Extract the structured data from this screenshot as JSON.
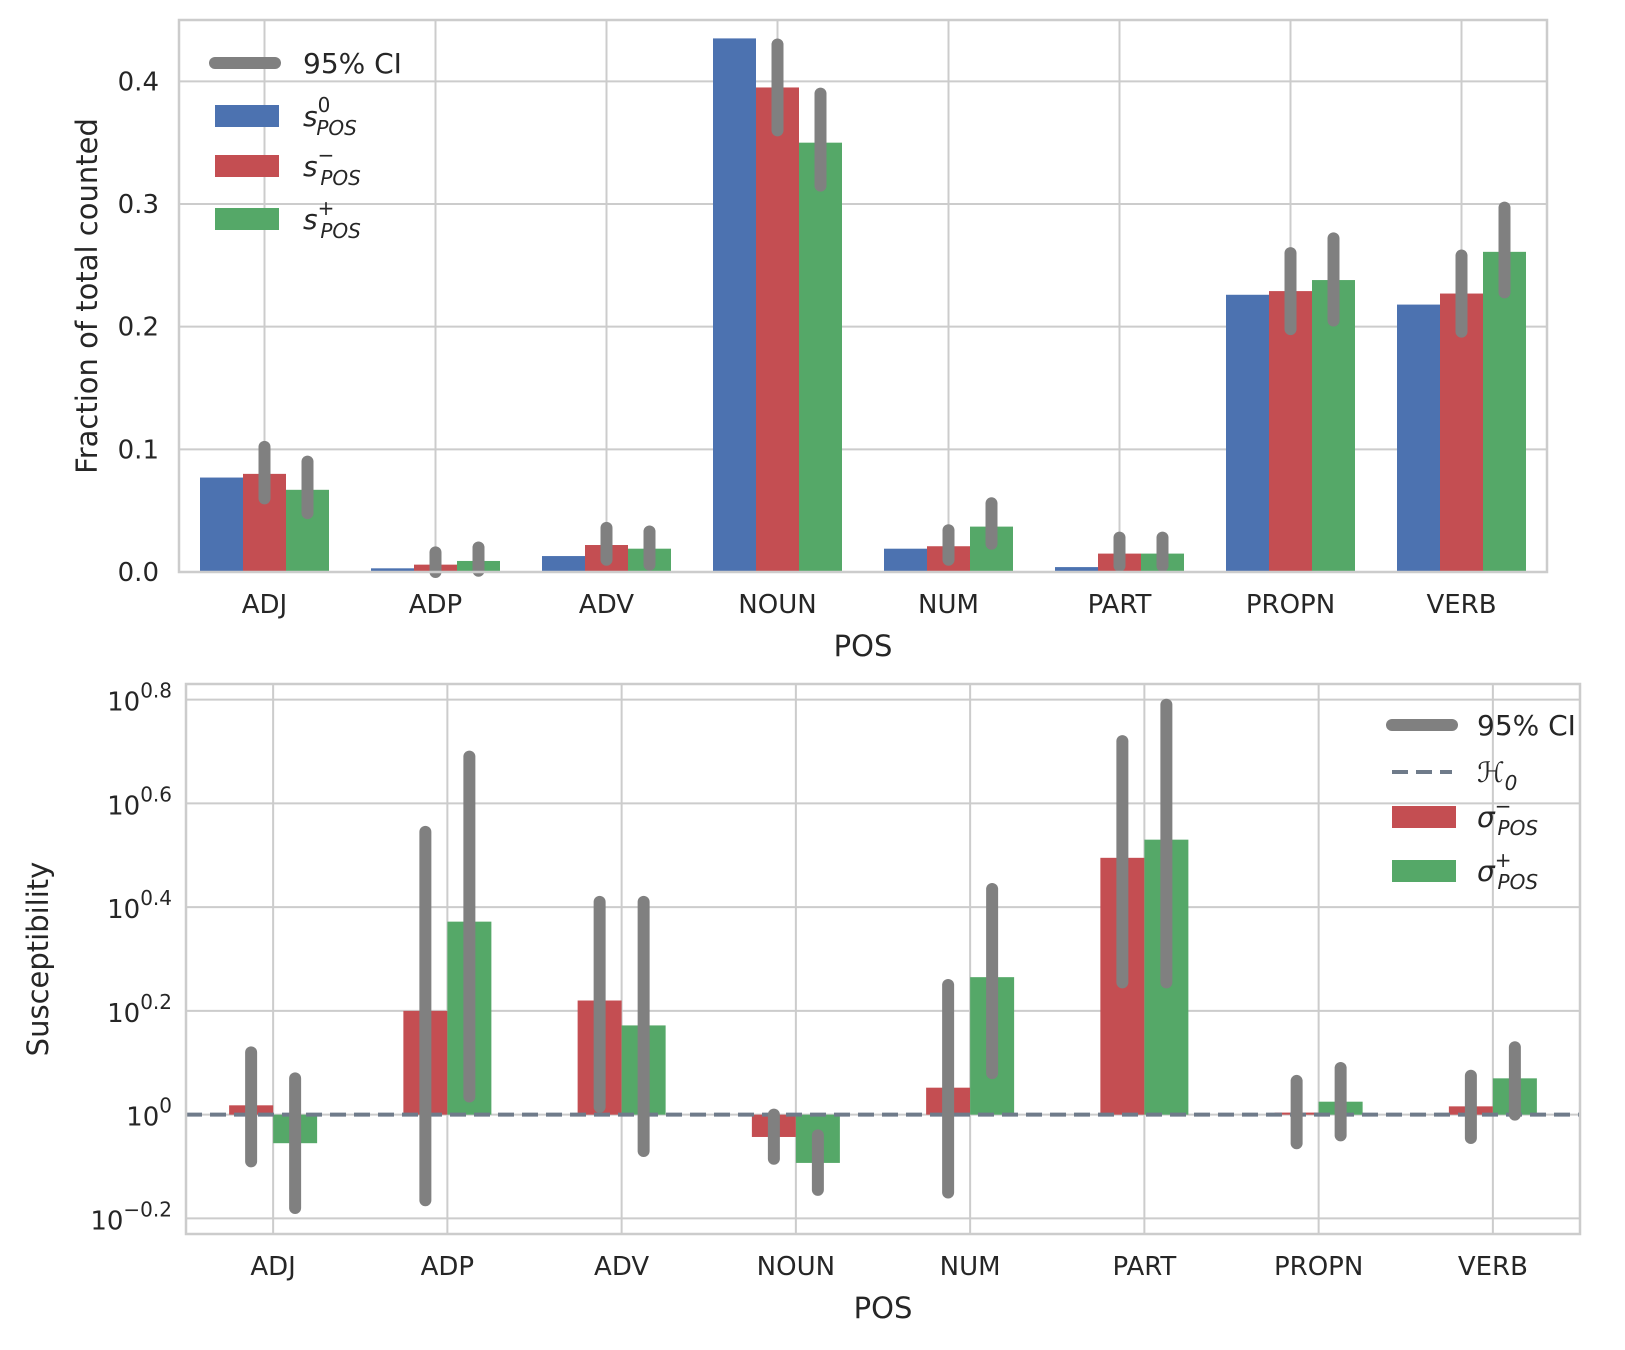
{
  "colors": {
    "s0": "#4c72b0",
    "minus": "#c44e52",
    "plus": "#55a868",
    "ci": "#808080",
    "h0": "#6f7b8a",
    "grid": "#cccccc",
    "frame": "#cccccc"
  },
  "chart_data": [
    {
      "type": "bar",
      "categories": [
        "ADJ",
        "ADP",
        "ADV",
        "NOUN",
        "NUM",
        "PART",
        "PROPN",
        "VERB"
      ],
      "xlabel": "POS",
      "ylabel": "Fraction of total counted",
      "ylim": [
        0,
        0.45
      ],
      "yticks": [
        0.0,
        0.1,
        0.2,
        0.3,
        0.4
      ],
      "ytick_labels": [
        "0.0",
        "0.1",
        "0.2",
        "0.3",
        "0.4"
      ],
      "grid": true,
      "legend_position": "top-left",
      "legend": {
        "ci": "95% CI",
        "s0": {
          "base": "s",
          "sup": "0",
          "sub": "POS"
        },
        "minus": {
          "base": "s",
          "sup": "−",
          "sub": "POS"
        },
        "plus": {
          "base": "s",
          "sup": "+",
          "sub": "POS"
        }
      },
      "series": [
        {
          "key": "s0",
          "values": [
            0.077,
            0.003,
            0.013,
            0.435,
            0.019,
            0.004,
            0.226,
            0.218
          ],
          "ci_low": null,
          "ci_high": null
        },
        {
          "key": "minus",
          "values": [
            0.08,
            0.006,
            0.022,
            0.395,
            0.021,
            0.015,
            0.229,
            0.227
          ],
          "ci_low": [
            0.06,
            0.0,
            0.01,
            0.36,
            0.01,
            0.005,
            0.198,
            0.196
          ],
          "ci_high": [
            0.102,
            0.016,
            0.036,
            0.43,
            0.034,
            0.028,
            0.26,
            0.258
          ]
        },
        {
          "key": "plus",
          "values": [
            0.067,
            0.009,
            0.019,
            0.35,
            0.037,
            0.015,
            0.238,
            0.261
          ],
          "ci_low": [
            0.048,
            0.001,
            0.006,
            0.315,
            0.023,
            0.005,
            0.205,
            0.228
          ],
          "ci_high": [
            0.09,
            0.02,
            0.033,
            0.39,
            0.056,
            0.028,
            0.272,
            0.297
          ]
        }
      ]
    },
    {
      "type": "bar",
      "categories": [
        "ADJ",
        "ADP",
        "ADV",
        "NOUN",
        "NUM",
        "PART",
        "PROPN",
        "VERB"
      ],
      "xlabel": "POS",
      "ylabel": "Susceptibility",
      "log_scale": true,
      "ylim_exponent": [
        -0.23,
        0.83
      ],
      "ytick_exponents": [
        -0.2,
        0.0,
        0.2,
        0.4,
        0.6,
        0.8
      ],
      "ytick_labels": [
        {
          "base": "10",
          "exp": "−0.2"
        },
        {
          "base": "10",
          "exp": "0"
        },
        {
          "base": "10",
          "exp": "0.2"
        },
        {
          "base": "10",
          "exp": "0.4"
        },
        {
          "base": "10",
          "exp": "0.6"
        },
        {
          "base": "10",
          "exp": "0.8"
        }
      ],
      "baseline_exponent": 0.0,
      "grid": true,
      "legend_position": "top-right",
      "legend": {
        "ci": "95% CI",
        "h0": {
          "base": "ℋ",
          "sub": "0"
        },
        "minus": {
          "base": "σ",
          "sup": "−",
          "sub": "POS"
        },
        "plus": {
          "base": "σ",
          "sup": "+",
          "sub": "POS"
        }
      },
      "series": [
        {
          "key": "minus",
          "exponents": [
            0.018,
            0.2,
            0.22,
            -0.043,
            0.052,
            0.495,
            0.004,
            0.016
          ],
          "ci_low": [
            -0.09,
            -0.165,
            0.015,
            -0.085,
            -0.15,
            0.255,
            -0.055,
            -0.045
          ],
          "ci_high": [
            0.12,
            0.545,
            0.41,
            0.0,
            0.25,
            0.72,
            0.065,
            0.075
          ]
        },
        {
          "key": "plus",
          "exponents": [
            -0.055,
            0.372,
            0.172,
            -0.093,
            0.265,
            0.53,
            0.025,
            0.07
          ],
          "ci_low": [
            -0.18,
            0.035,
            -0.07,
            -0.145,
            0.08,
            0.255,
            -0.04,
            0.0
          ],
          "ci_high": [
            0.07,
            0.69,
            0.41,
            -0.04,
            0.435,
            0.79,
            0.09,
            0.13
          ]
        }
      ]
    }
  ]
}
